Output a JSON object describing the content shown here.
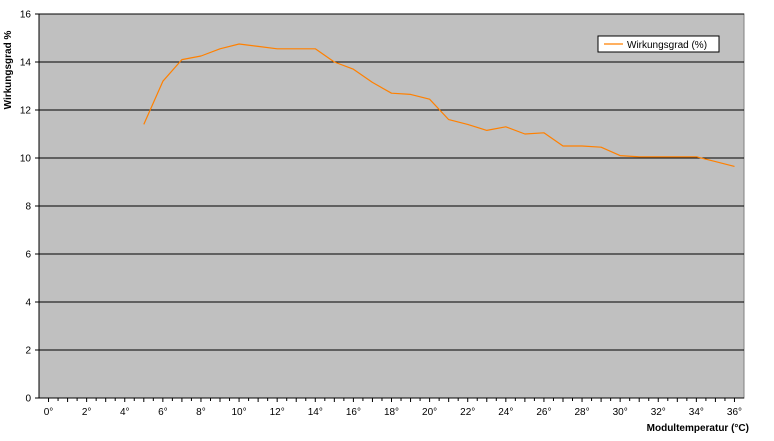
{
  "chart_data": {
    "type": "line",
    "title": "",
    "xlabel": "Modultemperatur (°C)",
    "ylabel": "Wirkungsgrad %",
    "xlim": [
      -0.5,
      36.5
    ],
    "ylim": [
      0,
      16
    ],
    "x_ticks": [
      0,
      2,
      4,
      6,
      8,
      10,
      12,
      14,
      16,
      18,
      20,
      22,
      24,
      26,
      28,
      30,
      32,
      34,
      36
    ],
    "x_tick_labels": [
      "0°",
      "2°",
      "4°",
      "6°",
      "8°",
      "10°",
      "12°",
      "14°",
      "16°",
      "18°",
      "20°",
      "22°",
      "24°",
      "26°",
      "28°",
      "30°",
      "32°",
      "34°",
      "36°"
    ],
    "y_ticks": [
      0,
      2,
      4,
      6,
      8,
      10,
      12,
      14,
      16
    ],
    "y_tick_labels": [
      "0",
      "2",
      "4",
      "6",
      "8",
      "10",
      "12",
      "14",
      "16"
    ],
    "grid": "horizontal",
    "legend_position": "top-right",
    "series": [
      {
        "name": "Wirkungsgrad (%)",
        "color": "#ff8000",
        "x": [
          5,
          6,
          7,
          8,
          9,
          10,
          11,
          12,
          13,
          14,
          15,
          16,
          17,
          18,
          19,
          20,
          21,
          22,
          23,
          24,
          25,
          26,
          27,
          28,
          29,
          30,
          31,
          32,
          33,
          34,
          35,
          36
        ],
        "y": [
          11.4,
          13.2,
          14.1,
          14.25,
          14.55,
          14.75,
          14.65,
          14.55,
          14.55,
          14.55,
          14.0,
          13.7,
          13.15,
          12.7,
          12.65,
          12.45,
          11.6,
          11.4,
          11.15,
          11.3,
          11.0,
          11.05,
          10.5,
          10.5,
          10.45,
          10.1,
          10.05,
          10.05,
          10.05,
          10.05,
          9.85,
          9.65
        ]
      }
    ]
  },
  "colors": {
    "plot_background": "#c0c0c0",
    "gridline": "#000000",
    "series": "#ff8000"
  }
}
